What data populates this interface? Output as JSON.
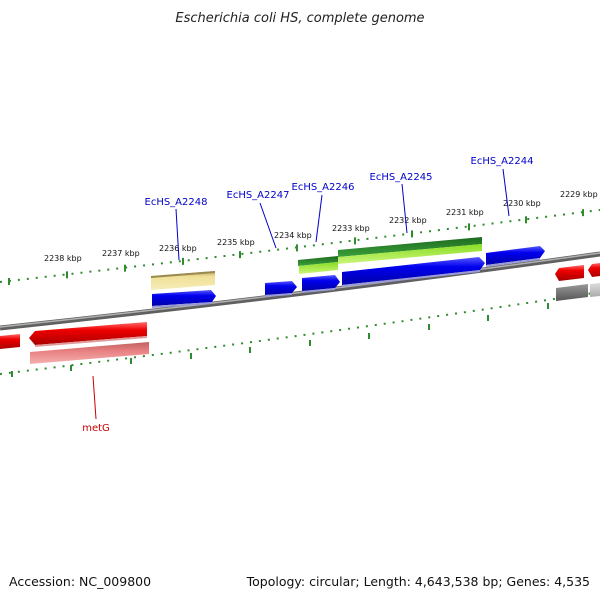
{
  "title": "Escherichia coli HS, complete genome",
  "footer": {
    "accession": "Accession: NC_009800",
    "summary": "Topology: circular; Length: 4,643,538 bp; Genes: 4,535"
  },
  "scale": {
    "labels": [
      "2238 kbp",
      "2237 kbp",
      "2236 kbp",
      "2235 kbp",
      "2234 kbp",
      "2233 kbp",
      "2232 kbp",
      "2231 kbp",
      "2230 kbp",
      "2229 kbp"
    ]
  },
  "genes": [
    {
      "label": "EcHS_A2248",
      "color": "#0000cc"
    },
    {
      "label": "EcHS_A2247",
      "color": "#0000cc"
    },
    {
      "label": "EcHS_A2246",
      "color": "#0000cc"
    },
    {
      "label": "EcHS_A2245",
      "color": "#0000cc"
    },
    {
      "label": "EcHS_A2244",
      "color": "#0000cc"
    },
    {
      "label": "metG",
      "color": "#cc0000"
    }
  ],
  "colors": {
    "backbone": "#7a7a7a",
    "tick": "#2e8b2e",
    "forward_cds": "#0000ee",
    "reverse_cds": "#ee0000",
    "pale_red": "#e88080",
    "pale_yellow": "#eedd88",
    "dark_green": "#2a8a2a",
    "light_green": "#aaee44",
    "gray": "#777777"
  }
}
